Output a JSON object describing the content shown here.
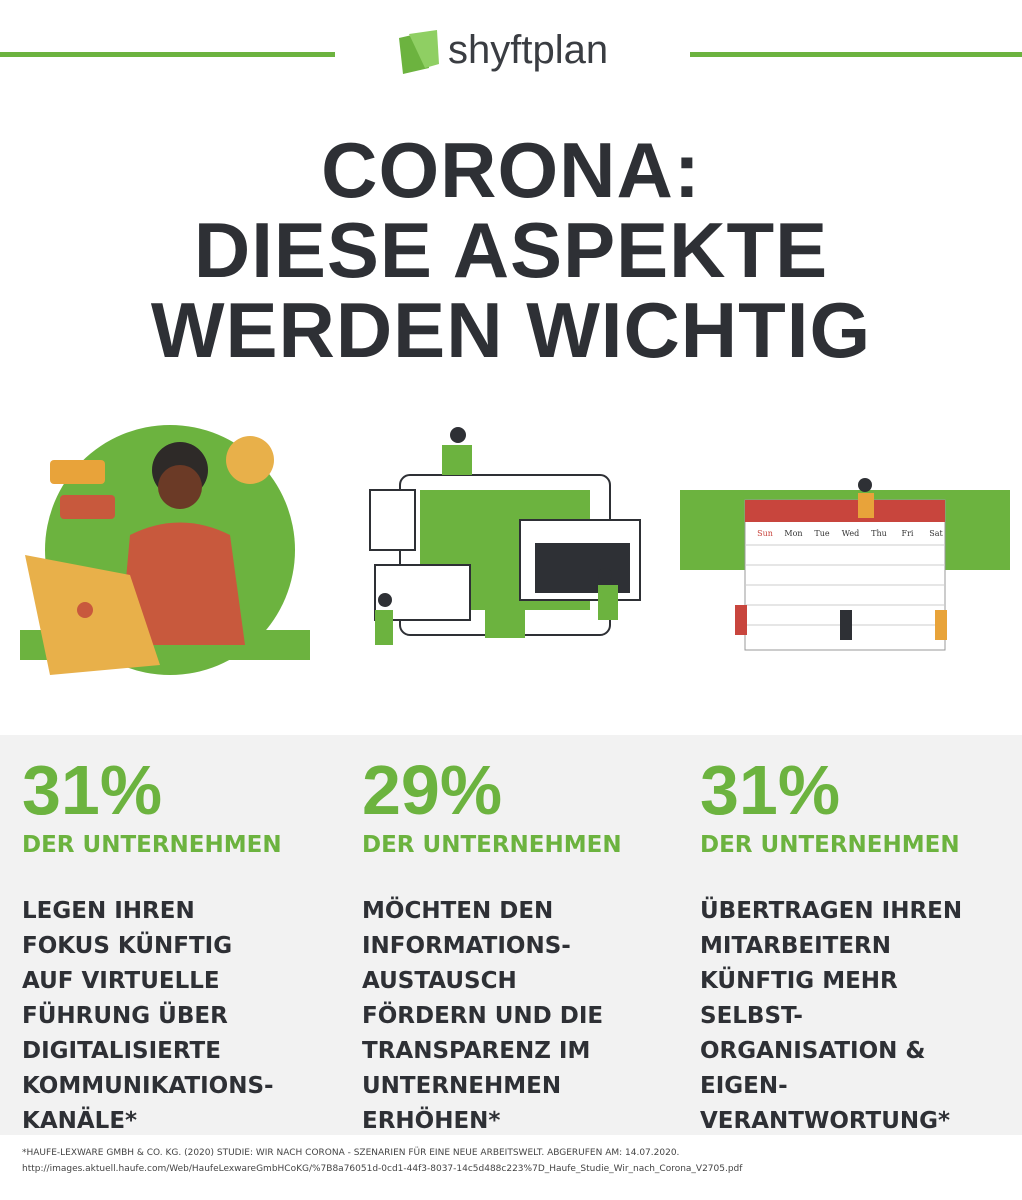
{
  "header": {
    "logo": "shyftplan"
  },
  "title": {
    "lines": [
      "CORONA:",
      "DIESE ASPEKTE",
      "WERDEN WICHTIG"
    ]
  },
  "calendar": {
    "weekdays": [
      "Sun",
      "Mon",
      "Tue",
      "Wed",
      "Thu",
      "Fri",
      "Sat"
    ]
  },
  "stats": [
    {
      "value": "31%",
      "label": "DER UNTERNEHMEN",
      "lines": [
        "LEGEN IHREN",
        "FOKUS KÜNFTIG",
        "AUF VIRTUELLE",
        "FÜHRUNG ÜBER",
        "DIGITALISIERTE",
        "KOMMUNIKATIONS-",
        "KANÄLE*"
      ]
    },
    {
      "value": "29%",
      "label": "DER UNTERNEHMEN",
      "lines": [
        "MÖCHTEN DEN",
        "INFORMATIONS-",
        "AUSTAUSCH",
        "FÖRDERN UND DIE",
        "TRANSPARENZ IM",
        "UNTERNEHMEN",
        "ERHÖHEN*"
      ]
    },
    {
      "value": "31%",
      "label": "DER UNTERNEHMEN",
      "lines": [
        "ÜBERTRAGEN IHREN",
        "MITARBEITERN",
        "KÜNFTIG MEHR",
        "SELBST-",
        "ORGANISATION &",
        "EIGEN-",
        "VERANTWORTUNG*"
      ]
    }
  ],
  "footnote": {
    "lines": [
      "*HAUFE-LEXWARE GMBH & CO. KG. (2020) STUDIE: WIR NACH CORONA - SZENARIEN FÜR EINE NEUE ARBEITSWELT. ABGERUFEN AM: 14.07.2020.",
      "http://images.aktuell.haufe.com/Web/HaufeLexwareGmbHCoKG/%7B8a76051d-0cd1-44f3-8037-14c5d488c223%7D_Haufe_Studie_Wir_nach_Corona_V2705.pdf"
    ]
  }
}
